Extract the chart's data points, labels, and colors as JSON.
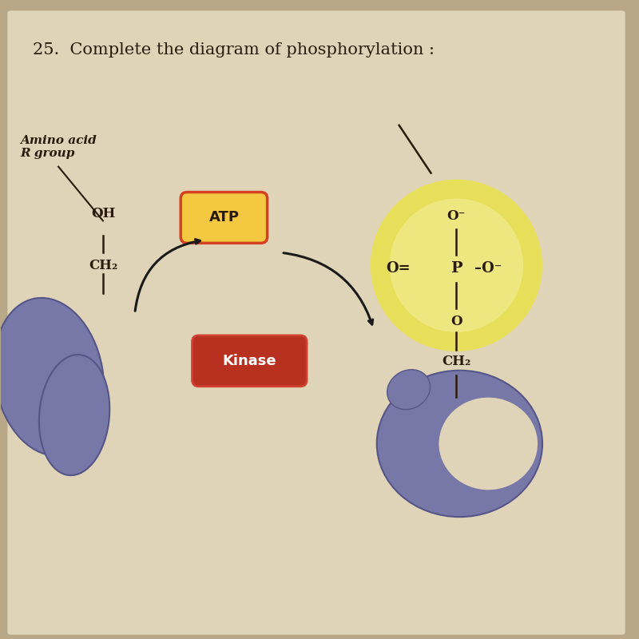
{
  "title": "25.  Complete the diagram of phosphorylation :",
  "bg_color": "#b8a888",
  "paper_color": "#e0d4b8",
  "text_color": "#2a1a0a",
  "title_fontsize": 15,
  "atp_label": "ATP",
  "kinase_label": "Kinase",
  "atp_bg": "#f5c842",
  "atp_border": "#d44020",
  "kinase_bg": "#b83020",
  "kinase_border": "#d04030",
  "phosphate_glow_color": "#e8e050",
  "purple_color": "#7878a8",
  "purple_edge": "#555588",
  "arrow_color": "#1a1a1a"
}
